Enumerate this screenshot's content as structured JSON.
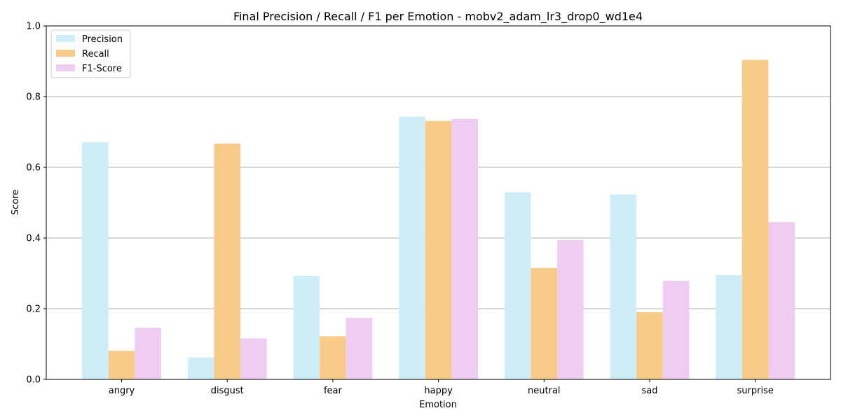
{
  "chart_data": {
    "type": "bar",
    "title": "Final Precision / Recall / F1 per Emotion - mobv2_adam_lr3_drop0_wd1e4",
    "xlabel": "Emotion",
    "ylabel": "Score",
    "ylim": [
      0,
      1.0
    ],
    "yticks": [
      "0.0",
      "0.2",
      "0.4",
      "0.6",
      "0.8",
      "1.0"
    ],
    "categories": [
      "angry",
      "disgust",
      "fear",
      "happy",
      "neutral",
      "sad",
      "surprise"
    ],
    "grid": "horizontal",
    "legend_position": "top-left",
    "series": [
      {
        "name": "Precision",
        "color": "#cdeef7",
        "values": [
          0.671,
          0.062,
          0.293,
          0.743,
          0.529,
          0.523,
          0.295
        ]
      },
      {
        "name": "Recall",
        "color": "#f9cb88",
        "values": [
          0.081,
          0.667,
          0.122,
          0.731,
          0.315,
          0.19,
          0.904
        ]
      },
      {
        "name": "F1-Score",
        "color": "#efcdf2",
        "values": [
          0.146,
          0.116,
          0.174,
          0.737,
          0.394,
          0.279,
          0.445
        ]
      }
    ]
  }
}
